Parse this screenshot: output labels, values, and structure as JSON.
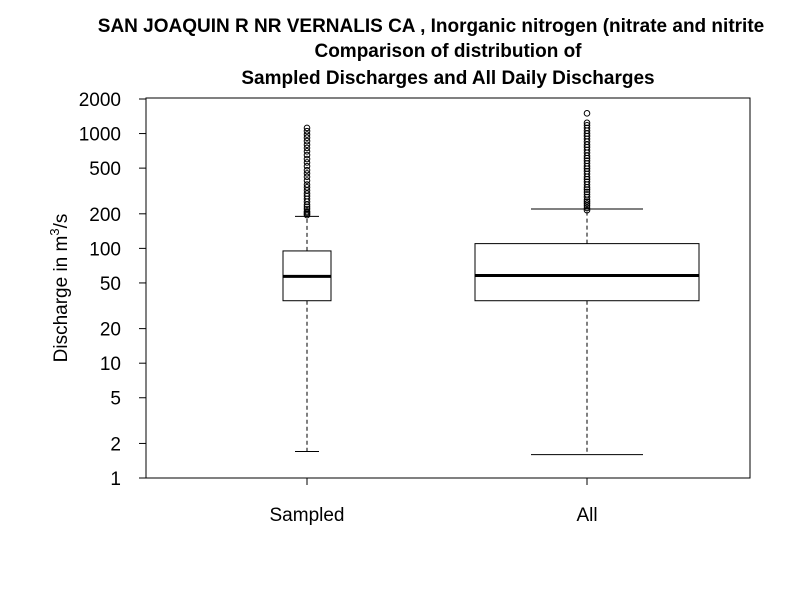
{
  "chart_data": {
    "type": "boxplot",
    "title_lines": [
      "SAN JOAQUIN R NR VERNALIS CA , Inorganic nitrogen (nitrate and nitrite",
      "Comparison of distribution of",
      "Sampled Discharges and All Daily Discharges"
    ],
    "ylabel_main": "Discharge in m",
    "ylabel_sup": "3",
    "ylabel_tail": "/s",
    "y_scale": "log",
    "ylim": [
      1,
      2000
    ],
    "y_ticks": [
      1,
      2,
      5,
      10,
      20,
      50,
      100,
      200,
      500,
      1000,
      2000
    ],
    "y_tick_labels": [
      "1",
      "2",
      "5",
      "10",
      "20",
      "50",
      "100",
      "200",
      "500",
      "1000",
      "2000"
    ],
    "categories": [
      "Sampled",
      "All"
    ],
    "boxes": [
      {
        "name": "Sampled",
        "whisker_low": 1.7,
        "q1": 35,
        "median": 57,
        "q3": 95,
        "whisker_high": 190,
        "outliers": [
          195,
          200,
          205,
          210,
          220,
          230,
          240,
          255,
          270,
          285,
          300,
          320,
          340,
          360,
          390,
          420,
          450,
          480,
          520,
          560,
          600,
          650,
          700,
          750,
          800,
          860,
          920,
          980,
          1050,
          1120
        ]
      },
      {
        "name": "All",
        "whisker_low": 1.6,
        "q1": 35,
        "median": 58,
        "q3": 110,
        "whisker_high": 220,
        "outliers": [
          215,
          225,
          235,
          245,
          255,
          265,
          280,
          295,
          310,
          325,
          340,
          360,
          380,
          400,
          420,
          445,
          470,
          495,
          520,
          550,
          580,
          610,
          640,
          680,
          720,
          760,
          800,
          850,
          900,
          950,
          1000,
          1060,
          1120,
          1180,
          1240,
          1500
        ]
      }
    ],
    "grid": false
  }
}
